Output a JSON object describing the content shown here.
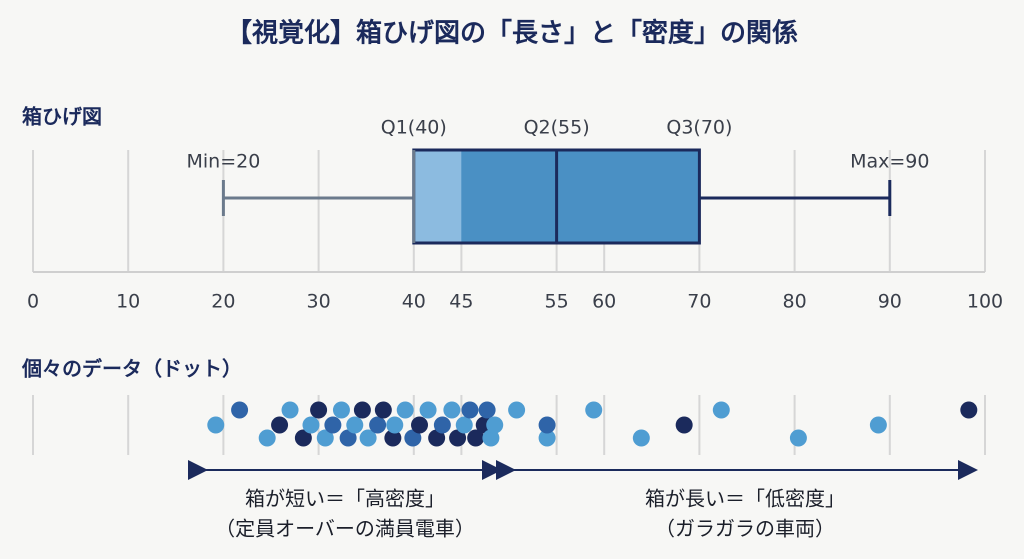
{
  "chart_data": {
    "type": "boxplot",
    "title": "【視覚化】箱ひげ図の「長さ」と「密度」の関係",
    "box_section_label": "箱ひげ図",
    "dot_section_label": "個々のデータ（ドット）",
    "stats": {
      "min": 20,
      "q1": 40,
      "median": 55,
      "q3": 70,
      "max": 90
    },
    "stat_labels": {
      "min": "Min=20",
      "q1": "Q1(40)",
      "median": "Q2(55)",
      "q3": "Q3(70)",
      "max": "Max=90"
    },
    "box_color": "#4a90c4",
    "dense_color": "#8cbbe0",
    "line_color": "#1b2a5c",
    "whisker_color": "#6b7a8c",
    "xlim": [
      0,
      100
    ],
    "xticks": [
      0,
      10,
      20,
      30,
      40,
      45,
      55,
      60,
      70,
      80,
      90,
      100
    ],
    "grid": true,
    "dots": {
      "x": [
        19.2,
        21.7,
        24.6,
        25.9,
        27,
        28.4,
        29.2,
        30,
        30.7,
        31.5,
        32.4,
        33.1,
        33.8,
        34.6,
        35.2,
        36.2,
        36.8,
        37.8,
        38,
        39.1,
        39.9,
        40.6,
        41.5,
        42.4,
        43,
        44,
        44.6,
        45.3,
        45.9,
        46.5,
        47.4,
        47.7,
        48.1,
        48.5,
        50.8,
        54,
        54,
        58.9,
        63.9,
        68.4,
        72.3,
        80.4,
        88.8,
        98.3
      ],
      "colors": [
        "#4f9dd2",
        "#2f64a8",
        "#4f9dd2",
        "#1b2a5c",
        "#4f9dd2",
        "#1b2a5c",
        "#4f9dd2",
        "#1b2a5c",
        "#4f9dd2",
        "#2f64a8",
        "#4f9dd2",
        "#2f64a8",
        "#4f9dd2",
        "#1b2a5c",
        "#4f9dd2",
        "#2f64a8",
        "#1b2a5c",
        "#1b2a5c",
        "#4f9dd2",
        "#4f9dd2",
        "#2f64a8",
        "#1b2a5c",
        "#4f9dd2",
        "#1b2a5c",
        "#2f64a8",
        "#4f9dd2",
        "#1b2a5c",
        "#4f9dd2",
        "#2f64a8",
        "#1b2a5c",
        "#1b2a5c",
        "#2f64a8",
        "#4f9dd2",
        "#4f9dd2",
        "#4f9dd2",
        "#4f9dd2",
        "#2f64a8",
        "#4f9dd2",
        "#4f9dd2",
        "#1b2a5c",
        "#4f9dd2",
        "#4f9dd2",
        "#4f9dd2",
        "#1b2a5c"
      ]
    },
    "annotations": {
      "left_title": "箱が短い＝「高密度」",
      "left_note": "（定員オーバーの満員電車）",
      "right_title": "箱が長い＝「低密度」",
      "right_note": "（ガラガラの車両）"
    }
  }
}
